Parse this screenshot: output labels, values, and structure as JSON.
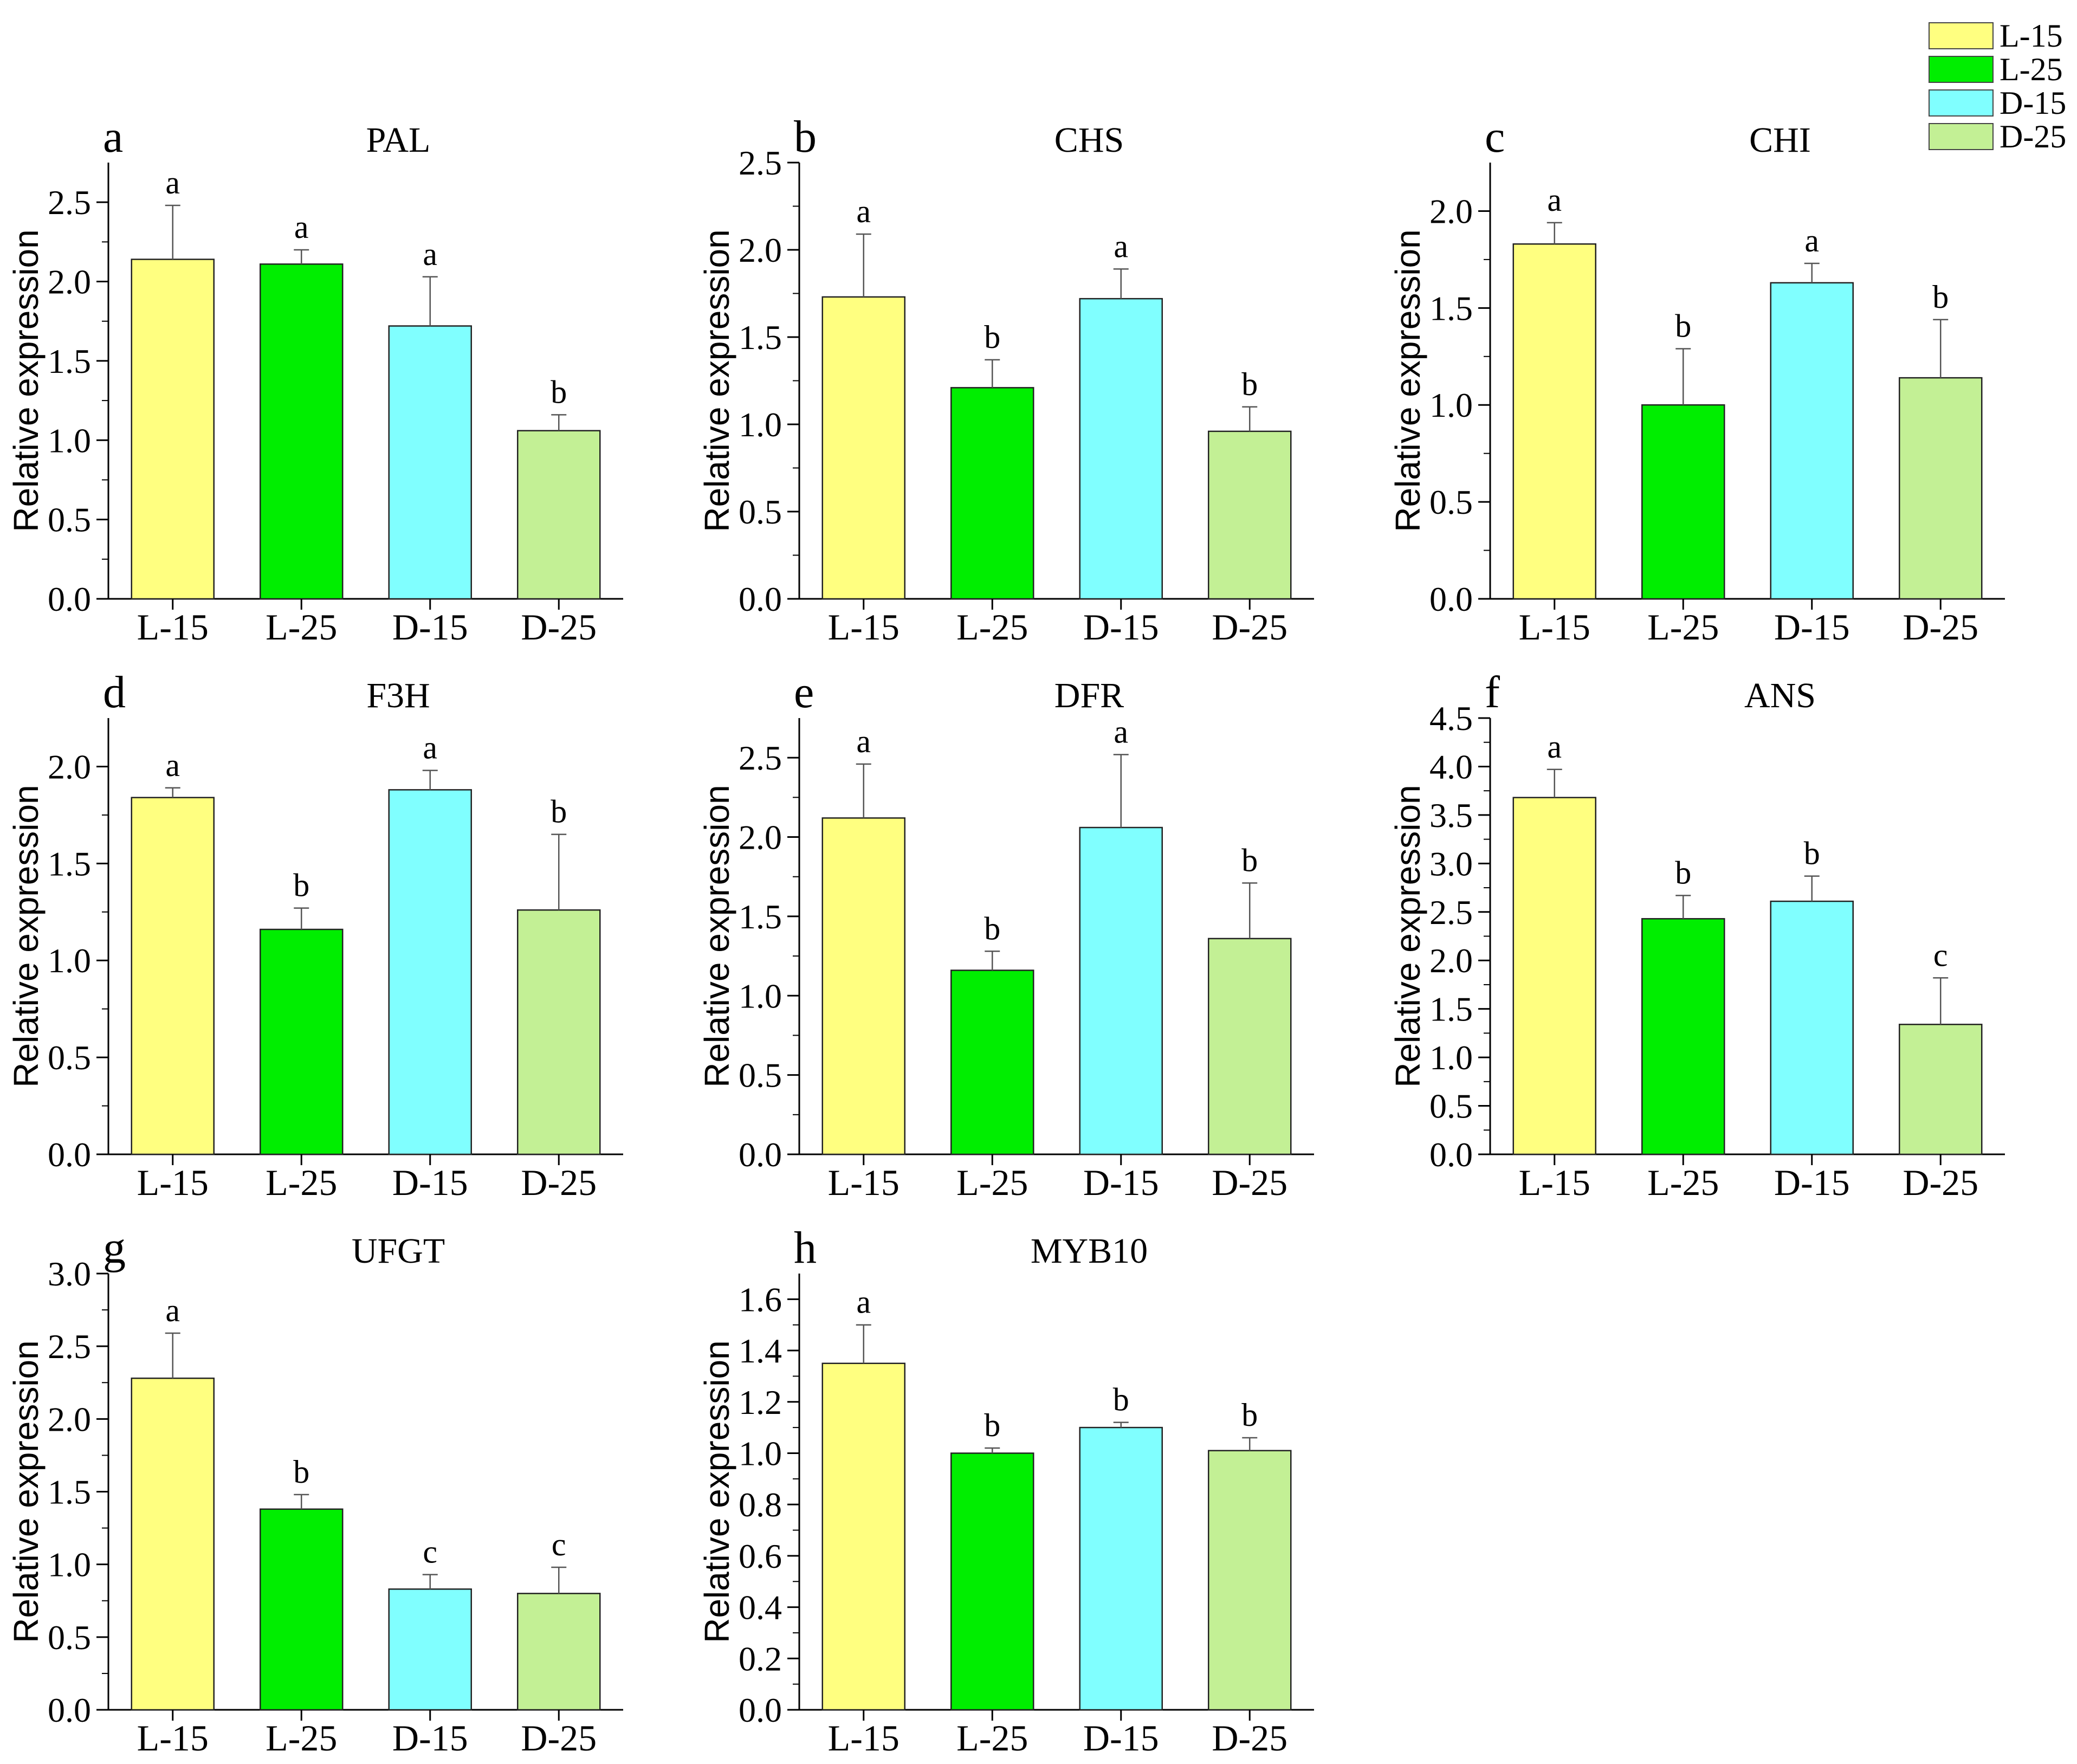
{
  "legend": [
    {
      "label": "L-15",
      "color": "#ffff80"
    },
    {
      "label": "L-25",
      "color": "#00ee00"
    },
    {
      "label": "D-15",
      "color": "#80ffff"
    },
    {
      "label": "D-25",
      "color": "#c3f095"
    }
  ],
  "chart_data": [
    {
      "type": "bar",
      "letter": "a",
      "title": "PAL",
      "ylabel": "Relative expression",
      "categories": [
        "L-15",
        "L-25",
        "D-15",
        "D-25"
      ],
      "values": [
        2.14,
        2.11,
        1.72,
        1.06
      ],
      "errors": [
        0.34,
        0.09,
        0.31,
        0.1
      ],
      "significance": [
        "a",
        "a",
        "a",
        "b"
      ],
      "ylim": [
        0,
        2.75
      ],
      "ticks": [
        0.0,
        0.5,
        1.0,
        1.5,
        2.0,
        2.5
      ],
      "tick_labels": [
        "0.0",
        "0.5",
        "1.0",
        "1.5",
        "2.0",
        "2.5"
      ]
    },
    {
      "type": "bar",
      "letter": "b",
      "title": "CHS",
      "ylabel": "Relative expression",
      "categories": [
        "L-15",
        "L-25",
        "D-15",
        "D-25"
      ],
      "values": [
        1.73,
        1.21,
        1.72,
        0.96
      ],
      "errors": [
        0.36,
        0.16,
        0.17,
        0.14
      ],
      "significance": [
        "a",
        "b",
        "a",
        "b"
      ],
      "ylim": [
        0,
        2.5
      ],
      "ticks": [
        0.0,
        0.5,
        1.0,
        1.5,
        2.0,
        2.5
      ],
      "tick_labels": [
        "0.0",
        "0.5",
        "1.0",
        "1.5",
        "2.0",
        "2.5"
      ]
    },
    {
      "type": "bar",
      "letter": "c",
      "title": "CHI",
      "ylabel": "Relative expression",
      "categories": [
        "L-15",
        "L-25",
        "D-15",
        "D-25"
      ],
      "values": [
        1.83,
        1.0,
        1.63,
        1.14
      ],
      "errors": [
        0.11,
        0.29,
        0.1,
        0.3
      ],
      "significance": [
        "a",
        "b",
        "a",
        "b"
      ],
      "ylim": [
        0,
        2.25
      ],
      "ticks": [
        0.0,
        0.5,
        1.0,
        1.5,
        2.0
      ],
      "tick_labels": [
        "0.0",
        "0.5",
        "1.0",
        "1.5",
        "2.0"
      ]
    },
    {
      "type": "bar",
      "letter": "d",
      "title": "F3H",
      "ylabel": "Relative expression",
      "categories": [
        "L-15",
        "L-25",
        "D-15",
        "D-25"
      ],
      "values": [
        1.84,
        1.16,
        1.88,
        1.26
      ],
      "errors": [
        0.05,
        0.11,
        0.1,
        0.39
      ],
      "significance": [
        "a",
        "b",
        "a",
        "b"
      ],
      "ylim": [
        0,
        2.25
      ],
      "ticks": [
        0.0,
        0.5,
        1.0,
        1.5,
        2.0
      ],
      "tick_labels": [
        "0.0",
        "0.5",
        "1.0",
        "1.5",
        "2.0"
      ]
    },
    {
      "type": "bar",
      "letter": "e",
      "title": "DFR",
      "ylabel": "Relative expression",
      "categories": [
        "L-15",
        "L-25",
        "D-15",
        "D-25"
      ],
      "values": [
        2.12,
        1.16,
        2.06,
        1.36
      ],
      "errors": [
        0.34,
        0.12,
        0.46,
        0.35
      ],
      "significance": [
        "a",
        "b",
        "a",
        "b"
      ],
      "ylim": [
        0,
        2.75
      ],
      "ticks": [
        0.0,
        0.5,
        1.0,
        1.5,
        2.0,
        2.5
      ],
      "tick_labels": [
        "0.0",
        "0.5",
        "1.0",
        "1.5",
        "2.0",
        "2.5"
      ]
    },
    {
      "type": "bar",
      "letter": "f",
      "title": "ANS",
      "ylabel": "Relative expression",
      "categories": [
        "L-15",
        "L-25",
        "D-15",
        "D-25"
      ],
      "values": [
        3.68,
        2.43,
        2.61,
        1.34
      ],
      "errors": [
        0.29,
        0.24,
        0.26,
        0.48
      ],
      "significance": [
        "a",
        "b",
        "b",
        "c"
      ],
      "ylim": [
        0,
        4.5
      ],
      "ticks": [
        0.0,
        0.5,
        1.0,
        1.5,
        2.0,
        2.5,
        3.0,
        3.5,
        4.0,
        4.5
      ],
      "tick_labels": [
        "0.0",
        "0.5",
        "1.0",
        "1.5",
        "2.0",
        "2.5",
        "3.0",
        "3.5",
        "4.0",
        "4.5"
      ]
    },
    {
      "type": "bar",
      "letter": "g",
      "title": "UFGT",
      "ylabel": "Relative expression",
      "categories": [
        "L-15",
        "L-25",
        "D-15",
        "D-25"
      ],
      "values": [
        2.28,
        1.38,
        0.83,
        0.8
      ],
      "errors": [
        0.31,
        0.1,
        0.1,
        0.18
      ],
      "significance": [
        "a",
        "b",
        "c",
        "c"
      ],
      "ylim": [
        0,
        3.0
      ],
      "ticks": [
        0.0,
        0.5,
        1.0,
        1.5,
        2.0,
        2.5,
        3.0
      ],
      "tick_labels": [
        "0.0",
        "0.5",
        "1.0",
        "1.5",
        "2.0",
        "2.5",
        "3.0"
      ]
    },
    {
      "type": "bar",
      "letter": "h",
      "title": "MYB10",
      "ylabel": "Relative expression",
      "categories": [
        "L-15",
        "L-25",
        "D-15",
        "D-25"
      ],
      "values": [
        1.35,
        1.0,
        1.1,
        1.01
      ],
      "errors": [
        0.15,
        0.02,
        0.02,
        0.05
      ],
      "significance": [
        "a",
        "b",
        "b",
        "b"
      ],
      "ylim": [
        0,
        1.7
      ],
      "ticks": [
        0.0,
        0.2,
        0.4,
        0.6,
        0.8,
        1.0,
        1.2,
        1.4,
        1.6
      ],
      "tick_labels": [
        "0.0",
        "0.2",
        "0.4",
        "0.6",
        "0.8",
        "1.0",
        "1.2",
        "1.4",
        "1.6"
      ]
    }
  ]
}
